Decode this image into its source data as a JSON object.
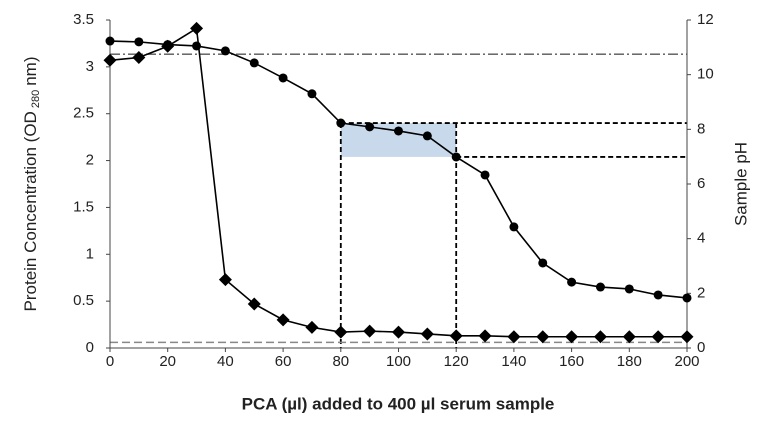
{
  "chart_data": {
    "type": "line",
    "xlabel": "PCA (µl) added to 400 µl serum sample",
    "ylabel": "Protein Concentration (OD",
    "ylabel_sub": "280",
    "ylabel_end": "nm)",
    "y2label": "Sample pH",
    "x": [
      0,
      10,
      20,
      30,
      40,
      50,
      60,
      70,
      80,
      90,
      100,
      110,
      120,
      130,
      140,
      150,
      160,
      170,
      180,
      190,
      200
    ],
    "xlim": [
      0,
      200
    ],
    "xticks": [
      0,
      20,
      40,
      60,
      80,
      100,
      120,
      140,
      160,
      180,
      200
    ],
    "ylim": [
      0,
      3.5
    ],
    "yticks": [
      0,
      0.5,
      1,
      1.5,
      2,
      2.5,
      3,
      3.5
    ],
    "y2lim": [
      0,
      12
    ],
    "y2ticks": [
      0,
      2,
      4,
      6,
      8,
      10,
      12
    ],
    "grid": false,
    "series": [
      {
        "color": "#000000",
        "marker": "diamond",
        "axis": "y",
        "values": [
          3.07,
          3.1,
          3.22,
          3.41,
          0.73,
          0.47,
          0.3,
          0.22,
          0.17,
          0.18,
          0.17,
          0.15,
          0.13,
          0.13,
          0.12,
          0.12,
          0.12,
          0.12,
          0.12,
          0.12,
          0.12
        ]
      },
      {
        "color": "#000000",
        "marker": "circle",
        "axis": "y2",
        "values": [
          11.23,
          11.2,
          11.1,
          11.05,
          10.87,
          10.43,
          9.88,
          9.3,
          8.23,
          8.09,
          7.94,
          7.76,
          6.99,
          6.33,
          4.43,
          3.11,
          2.41,
          2.23,
          2.16,
          1.94,
          1.83
        ]
      }
    ],
    "hlines": [
      {
        "value": 10.75,
        "axis": "y2",
        "color": "#555555",
        "dash": "10 3 2 3"
      },
      {
        "value": 0.06,
        "axis": "y",
        "color": "#888888",
        "dash": "8 4"
      }
    ],
    "band": {
      "x": [
        80,
        120
      ],
      "y2": [
        6.99,
        8.23
      ],
      "color": "#c9d9ec"
    }
  }
}
